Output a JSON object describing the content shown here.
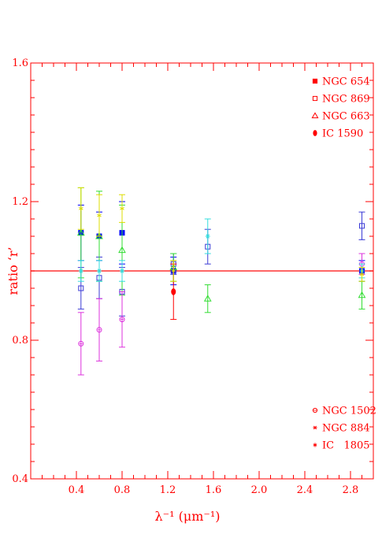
{
  "chart_data": {
    "type": "scatter",
    "xlabel": "λ⁻¹ (μm⁻¹)",
    "ylabel": "ratio ‘r’",
    "xlim": [
      0.0,
      3.0
    ],
    "ylim": [
      0.4,
      1.6
    ],
    "x_ticks": [
      "0.4",
      "0.8",
      "1.2",
      "1.6",
      "2.0",
      "2.4",
      "2.8"
    ],
    "y_ticks": [
      "0.4",
      "0.8",
      "1.2",
      "1.6"
    ],
    "reference_line": 1.0,
    "frame_color": "#ff0000",
    "series": [
      {
        "name": "NGC 654",
        "marker": "filled-square",
        "color": "#0000ff",
        "points": [
          {
            "x": 0.44,
            "y": 1.11,
            "err": 0.08
          },
          {
            "x": 0.6,
            "y": 1.1,
            "err": 0.07
          },
          {
            "x": 0.8,
            "y": 1.11,
            "err": 0.09
          },
          {
            "x": 1.25,
            "y": 1.0,
            "err": 0.04
          },
          {
            "x": 2.9,
            "y": 1.0,
            "err": 0.03
          }
        ]
      },
      {
        "name": "NGC 869",
        "marker": "open-square",
        "color": "#3b3bd6",
        "points": [
          {
            "x": 0.44,
            "y": 0.95,
            "err": 0.06
          },
          {
            "x": 0.6,
            "y": 0.98,
            "err": 0.06
          },
          {
            "x": 0.8,
            "y": 0.94,
            "err": 0.07
          },
          {
            "x": 1.25,
            "y": 1.02,
            "err": 0.03
          },
          {
            "x": 1.55,
            "y": 1.07,
            "err": 0.05
          },
          {
            "x": 2.9,
            "y": 1.13,
            "err": 0.04
          }
        ]
      },
      {
        "name": "NGC 663",
        "marker": "triangle",
        "color": "#33dd33",
        "points": [
          {
            "x": 0.44,
            "y": 1.11,
            "err": 0.13
          },
          {
            "x": 0.6,
            "y": 1.1,
            "err": 0.13
          },
          {
            "x": 0.8,
            "y": 1.06,
            "err": 0.13
          },
          {
            "x": 1.25,
            "y": 1.01,
            "err": 0.04
          },
          {
            "x": 1.55,
            "y": 0.92,
            "err": 0.04
          },
          {
            "x": 2.9,
            "y": 0.93,
            "err": 0.04
          }
        ]
      },
      {
        "name": "IC 1590",
        "marker": "filled-circle",
        "color": "#ff0000",
        "points": [
          {
            "x": 1.25,
            "y": 0.94,
            "err": 0.08
          }
        ]
      },
      {
        "name": "NGC 1502",
        "marker": "open-circle",
        "color": "#dd33dd",
        "points": [
          {
            "x": 0.44,
            "y": 0.79,
            "err": 0.09
          },
          {
            "x": 0.6,
            "y": 0.83,
            "err": 0.09
          },
          {
            "x": 0.8,
            "y": 0.86,
            "err": 0.08
          },
          {
            "x": 2.9,
            "y": 1.02,
            "err": 0.03
          }
        ]
      },
      {
        "name": "NGC 884",
        "marker": "star",
        "color": "#33dddd",
        "points": [
          {
            "x": 0.44,
            "y": 1.0,
            "err": 0.03
          },
          {
            "x": 0.6,
            "y": 1.0,
            "err": 0.03
          },
          {
            "x": 0.8,
            "y": 1.0,
            "err": 0.03
          },
          {
            "x": 1.55,
            "y": 1.1,
            "err": 0.05
          },
          {
            "x": 2.9,
            "y": 1.0,
            "err": 0.02
          }
        ]
      },
      {
        "name": "IC   1805",
        "marker": "asterisk",
        "color": "#dddd00",
        "points": [
          {
            "x": 0.44,
            "y": 1.18,
            "err": 0.06
          },
          {
            "x": 0.6,
            "y": 1.16,
            "err": 0.06
          },
          {
            "x": 0.8,
            "y": 1.18,
            "err": 0.04
          },
          {
            "x": 1.25,
            "y": 1.0,
            "err": 0.03
          },
          {
            "x": 2.9,
            "y": 0.99,
            "err": 0.02
          }
        ]
      }
    ],
    "legend_groups": [
      {
        "position": "top-right",
        "entries": [
          {
            "series": "NGC 654",
            "marker": "filled-square",
            "color": "#ff0000"
          },
          {
            "series": "NGC 869",
            "marker": "open-square",
            "color": "#ff0000"
          },
          {
            "series": "NGC 663",
            "marker": "triangle",
            "color": "#ff0000"
          },
          {
            "series": "IC 1590",
            "marker": "filled-circle",
            "color": "#ff0000"
          }
        ]
      },
      {
        "position": "bottom-right",
        "entries": [
          {
            "series": "NGC 1502",
            "marker": "open-circle",
            "color": "#ff0000"
          },
          {
            "series": "NGC 884",
            "marker": "star",
            "color": "#ff0000"
          },
          {
            "series": "IC   1805",
            "marker": "asterisk",
            "color": "#ff0000"
          }
        ]
      }
    ]
  }
}
